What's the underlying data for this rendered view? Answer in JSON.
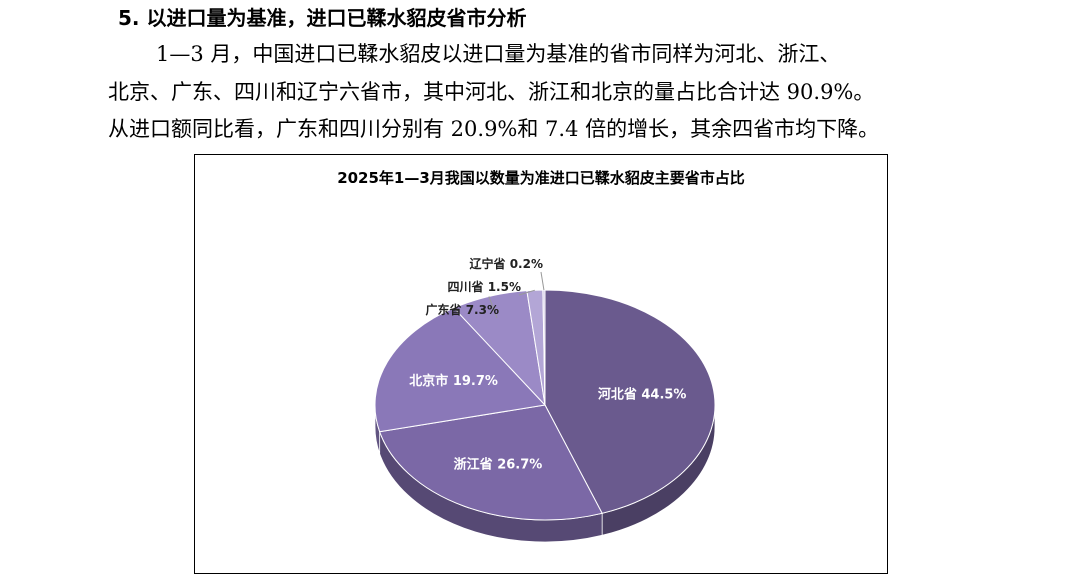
{
  "section": {
    "heading": "5. 以进口量为基准，进口已鞣水貂皮省市分析",
    "paragraph_lines": [
      "1—3 月，中国进口已鞣水貂皮以进口量为基准的省市同样为河北、浙江、",
      "北京、广东、四川和辽宁六省市，其中河北、浙江和北京的量占比合计达 90.9%。",
      "从进口额同比看，广东和四川分别有 20.9%和 7.4 倍的增长，其余四省市均下降。"
    ]
  },
  "chart_data": {
    "type": "pie",
    "title": "2025年1—3月我国以数量为准进口已鞣水貂皮主要省市占比",
    "slices": [
      {
        "name": "河北省",
        "value": 44.5,
        "label": "河北省 44.5%",
        "color": "#6a5a8e",
        "label_position": "inside"
      },
      {
        "name": "浙江省",
        "value": 26.7,
        "label": "浙江省 26.7%",
        "color": "#7b68a6",
        "label_position": "inside"
      },
      {
        "name": "北京市",
        "value": 19.7,
        "label": "北京市 19.7%",
        "color": "#8a78b8",
        "label_position": "inside"
      },
      {
        "name": "广东省",
        "value": 7.3,
        "label": "广东省 7.3%",
        "color": "#9b8ac6",
        "label_position": "outside"
      },
      {
        "name": "四川省",
        "value": 1.5,
        "label": "四川省 1.5%",
        "color": "#b3a6d6",
        "label_position": "outside"
      },
      {
        "name": "辽宁省",
        "value": 0.2,
        "label": "辽宁省 0.2%",
        "color": "#cfc6e6",
        "label_position": "outside"
      }
    ],
    "style": "3d-pie"
  }
}
